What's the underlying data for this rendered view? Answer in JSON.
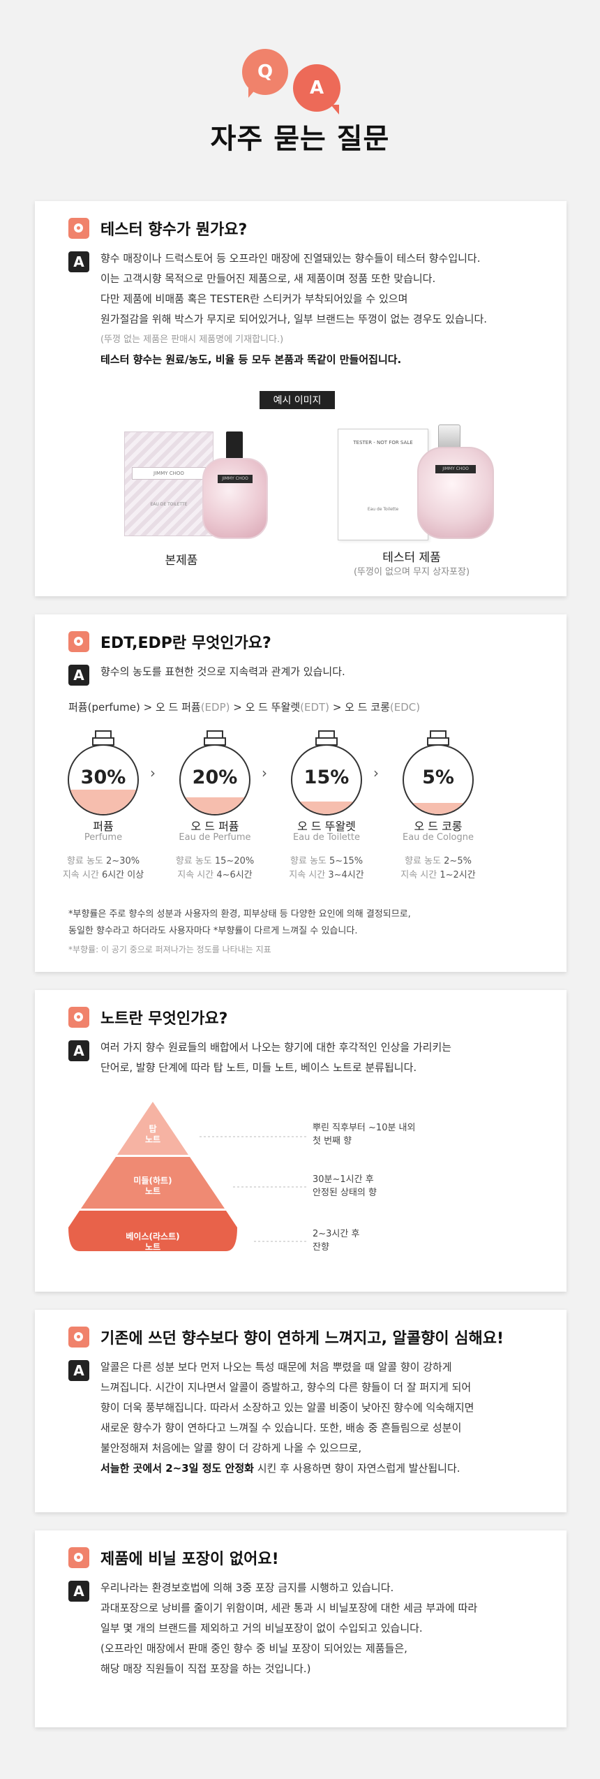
{
  "header": {
    "q_letter": "Q",
    "a_letter": "A",
    "title": "자주 묻는 질문"
  },
  "faq1": {
    "question": "테스터 향수가 뭔가요?",
    "answer_mark": "A",
    "lines": [
      "향수 매장이나 드럭스토어 등 오프라인 매장에 진열돼있는 향수들이 테스터 향수입니다.",
      "이는 고객시향 목적으로 만들어진 제품으로, 새 제품이며 정품 또한 맞습니다.",
      "다만 제품에 비매품 혹은 TESTER란 스티커가 부착되어있을 수 있으며",
      "원가절감을 위해 박스가 무지로 되어있거나, 일부 브랜드는 뚜껑이 없는 경우도 있습니다."
    ],
    "small_note": "(뚜껑 없는 제품은 판매시 제품명에 기재합니다.)",
    "bold_line": "테스터 향수는 원료/농도, 비율 등 모두 본품과 똑같이 만들어집니다.",
    "example_tag": "예시 이미지",
    "product_caption": "본제품",
    "tester_caption": "테스터 제품",
    "tester_sub": "(뚜껑이 없으며 무지 상자포장)",
    "box_label": "JIMMY CHOO",
    "box_small": "EAU DE TOILETTE",
    "tester_box_top": "TESTER - NOT FOR SALE",
    "tester_box_bottom": "Eau de Toilette"
  },
  "faq2": {
    "question": "EDT,EDP란 무엇인가요?",
    "answer_mark": "A",
    "answer": "향수의 농도를 표현한 것으로 지속력과 관계가 있습니다.",
    "path": {
      "p1": "퍼퓸(perfume) > 오 드 퍼퓸",
      "p1g": "(EDP)",
      "p2": " > 오 드 뚜왈렛",
      "p2g": "(EDT)",
      "p3": " > 오 드 코롱",
      "p3g": "(EDC)"
    },
    "arrow": "›",
    "types": [
      {
        "pct": "30%",
        "fill": 0.3,
        "name": "퍼퓸",
        "en": "Perfume",
        "conc_label": "향료 농도",
        "conc": "2~30%",
        "time_label": "지속 시간",
        "time": "6시간 이상"
      },
      {
        "pct": "20%",
        "fill": 0.2,
        "name": "오 드 퍼퓸",
        "en": "Eau de Perfume",
        "conc_label": "향료 농도",
        "conc": "15~20%",
        "time_label": "지속 시간",
        "time": "4~6시간"
      },
      {
        "pct": "15%",
        "fill": 0.15,
        "name": "오 드 뚜왈렛",
        "en": "Eau de Toilette",
        "conc_label": "향료 농도",
        "conc": "5~15%",
        "time_label": "지속 시간",
        "time": "3~4시간"
      },
      {
        "pct": "5%",
        "fill": 0.05,
        "name": "오 드 코롱",
        "en": "Eau de Cologne",
        "conc_label": "향료 농도",
        "conc": "2~5%",
        "time_label": "지속 시간",
        "time": "1~2시간"
      }
    ],
    "note1": "*부향률은 주로 향수의 성분과 사용자의 환경, 피부상태 등 다양한 요인에 의해 결정되므로,",
    "note2": "동일한 향수라고 하더라도 사용자마다 *부향률이 다르게 느껴질 수 있습니다.",
    "note3": "*부향률: 이 공기 중으로 퍼져나가는 정도를 나타내는 지표"
  },
  "faq3": {
    "question": "노트란 무엇인가요?",
    "answer_mark": "A",
    "lines": [
      "여러 가지 향수 원료들의 배합에서 나오는 향기에 대한 후각적인 인상을 가리키는",
      "단어로, 발향 단계에 따라 탑 노트, 미들 노트, 베이스 노트로 분류됩니다."
    ],
    "pyramid": [
      {
        "l1": "탑",
        "l2": "노트",
        "d1": "뿌린 직후부터 ~10분 내외",
        "d2": "첫 번째 향",
        "color": "#f6b3a3"
      },
      {
        "l1": "미들(하트)",
        "l2": "노트",
        "d1": "30분~1시간 후",
        "d2": "안정된 상태의 향",
        "color": "#ef8a73"
      },
      {
        "l1": "베이스(라스트)",
        "l2": "노트",
        "d1": "2~3시간 후",
        "d2": "잔향",
        "color": "#e8624a"
      }
    ]
  },
  "faq4": {
    "question": "기존에 쓰던  향수보다 향이 연하게 느껴지고, 알콜향이 심해요!",
    "answer_mark": "A",
    "lines": [
      "알콜은  다른 성분 보다 먼저 나오는 특성 때문에 처음 뿌렸을 때 알콜 향이 강하게",
      "느껴집니다. 시간이 지나면서 알콜이 증발하고, 향수의 다른 향들이 더 잘 퍼지게 되어",
      "향이 더욱 풍부해집니다. 따라서 소장하고 있는 알콜 비중이 낮아진 향수에 익숙해지면",
      "새로운 향수가 향이 연하다고 느껴질 수 있습니다. 또한, 배송 중 흔들림으로 성분이",
      "불안정해져 처음에는 알콜 향이 더 강하게 나올 수 있으므로,"
    ],
    "last_bold": "서늘한 곳에서 2~3일 정도 안정화",
    "last_rest": " 시킨 후 사용하면 향이 자연스럽게 발산됩니다."
  },
  "faq5": {
    "question": "제품에 비닐 포장이 없어요!",
    "answer_mark": "A",
    "lines": [
      "우리나라는 환경보호법에 의해 3중 포장 금지를 시행하고 있습니다.",
      "과대포장으로 낭비를 줄이기 위함이며, 세관 통과 시 비닐포장에 대한 세금 부과에 따라",
      "일부 몇 개의 브랜드를 제외하고 거의 비닐포장이 없이 수입되고 있습니다.",
      "(오프라인 매장에서 판매 중인 향수 중 비닐 포장이 되어있는 제품들은,",
      "해당 매장 직원들이 직접 포장을 하는 것입니다.)"
    ]
  }
}
